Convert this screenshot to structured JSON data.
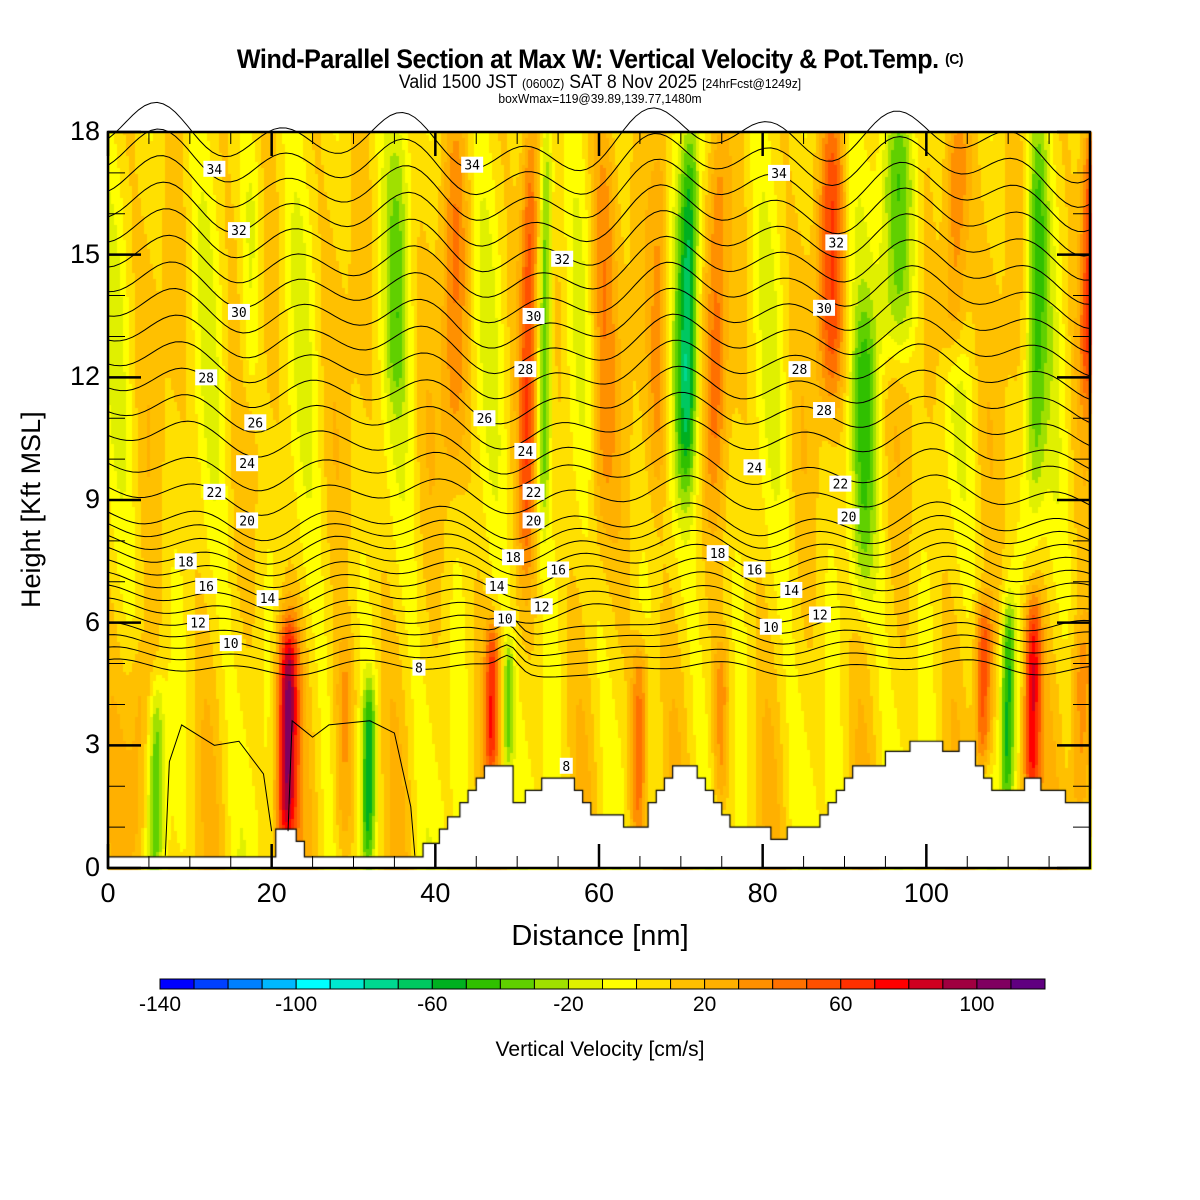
{
  "header": {
    "title": "Wind-Parallel Section at Max W: Vertical Velocity & Pot.Temp.",
    "title_copyright": "(C)",
    "subtitle_pre": "Valid 1500 JST",
    "subtitle_z": "(0600Z)",
    "subtitle_date": "SAT 8 Nov 2025",
    "subtitle_fcst": "[24hrFcst@1249z]",
    "subtitle2": "boxWmax=119@39.89,139.77,1480m"
  },
  "chart_data": {
    "type": "heatmap",
    "title": "Wind-Parallel Section at Max W: Vertical Velocity & Pot.Temp.",
    "xlabel": "Distance [nm]",
    "ylabel": "Height [Kft MSL]",
    "xlim": [
      0,
      120
    ],
    "ylim": [
      0,
      18
    ],
    "x_ticks": [
      0,
      20,
      40,
      60,
      80,
      100
    ],
    "y_ticks": [
      0,
      3,
      6,
      9,
      12,
      15,
      18
    ],
    "x_minor_step": 5,
    "y_minor_step": 1,
    "colorbar": {
      "label": "Vertical Velocity [cm/s]",
      "levels": [
        -140,
        -130,
        -120,
        -110,
        -100,
        -90,
        -80,
        -70,
        -60,
        -50,
        -40,
        -30,
        -20,
        -10,
        0,
        10,
        20,
        30,
        40,
        50,
        60,
        70,
        80,
        90,
        100,
        110,
        120
      ],
      "tick_labels": [
        "-140",
        "-100",
        "-60",
        "-20",
        "20",
        "60",
        "100"
      ],
      "tick_values": [
        -140,
        -100,
        -60,
        -20,
        20,
        60,
        100
      ],
      "colors": [
        "#0000ff",
        "#0040ff",
        "#0080ff",
        "#00b8ff",
        "#00ffff",
        "#00e8d0",
        "#00d890",
        "#00c860",
        "#00b020",
        "#30c000",
        "#60d000",
        "#a0e000",
        "#e0f000",
        "#ffff00",
        "#ffe000",
        "#ffc000",
        "#ffb000",
        "#ff9000",
        "#ff7000",
        "#ff5000",
        "#ff3000",
        "#ff0000",
        "#d00020",
        "#a00040",
        "#800060",
        "#600080"
      ],
      "placement": "bottom"
    },
    "filled_field": {
      "name": "Vertical Velocity",
      "units": "cm/s",
      "background_value": 5,
      "features": [
        {
          "x": 22,
          "z_min": 0.9,
          "z_max": 5.5,
          "peak": 95,
          "width_nm": 1.2
        },
        {
          "x": 4,
          "z_min": 0.5,
          "z_max": 5,
          "peak": 25,
          "width_nm": 1.5
        },
        {
          "x": 6,
          "z_min": 0.5,
          "z_max": 4,
          "peak": -40,
          "width_nm": 0.9
        },
        {
          "x": 32,
          "z_min": 0.5,
          "z_max": 4,
          "peak": -55,
          "width_nm": 0.8
        },
        {
          "x": 29,
          "z_min": 0.5,
          "z_max": 5,
          "peak": 30,
          "width_nm": 1.2
        },
        {
          "x": 47,
          "z_min": 3,
          "z_max": 5.5,
          "peak": 55,
          "width_nm": 0.8
        },
        {
          "x": 49,
          "z_min": 3,
          "z_max": 5,
          "peak": -35,
          "width_nm": 0.6
        },
        {
          "x": 65,
          "z_min": 1,
          "z_max": 5,
          "peak": 45,
          "width_nm": 1.0
        },
        {
          "x": 75,
          "z_min": 2,
          "z_max": 5,
          "peak": 30,
          "width_nm": 1.0
        },
        {
          "x": 107,
          "z_min": 3,
          "z_max": 6,
          "peak": 55,
          "width_nm": 1.0
        },
        {
          "x": 110,
          "z_min": 2,
          "z_max": 6,
          "peak": -55,
          "width_nm": 0.8
        },
        {
          "x": 113,
          "z_min": 2,
          "z_max": 6,
          "peak": 75,
          "width_nm": 1.0
        },
        {
          "x": 119,
          "z_min": 1,
          "z_max": 5.5,
          "peak": 35,
          "width_nm": 1.2
        },
        {
          "x": 51,
          "z_min": 8,
          "z_max": 18,
          "peak": 45,
          "width_nm": 1.0
        },
        {
          "x": 53,
          "z_min": 9,
          "z_max": 18,
          "peak": -50,
          "width_nm": 0.8
        },
        {
          "x": 70.5,
          "z_min": 10,
          "z_max": 18,
          "peak": -65,
          "width_nm": 1.2
        },
        {
          "x": 67,
          "z_min": 10,
          "z_max": 18,
          "peak": 30,
          "width_nm": 1.2
        },
        {
          "x": 74,
          "z_min": 10,
          "z_max": 18,
          "peak": 30,
          "width_nm": 1.2
        },
        {
          "x": 88,
          "z_min": 12,
          "z_max": 18,
          "peak": 45,
          "width_nm": 1.5
        },
        {
          "x": 96,
          "z_min": 13,
          "z_max": 18,
          "peak": -45,
          "width_nm": 2.2
        },
        {
          "x": 92,
          "z_min": 7,
          "z_max": 13,
          "peak": -35,
          "width_nm": 1.5
        },
        {
          "x": 103,
          "z_min": 13,
          "z_max": 18,
          "peak": 45,
          "width_nm": 1.5
        },
        {
          "x": 113,
          "z_min": 9,
          "z_max": 18,
          "peak": -40,
          "width_nm": 1.2
        },
        {
          "x": 119.5,
          "z_min": 12,
          "z_max": 18,
          "peak": 55,
          "width_nm": 1.0
        },
        {
          "x": 35,
          "z_min": 12,
          "z_max": 18,
          "peak": -25,
          "width_nm": 1.5
        },
        {
          "x": 42,
          "z_min": 10,
          "z_max": 18,
          "peak": 25,
          "width_nm": 1.5
        },
        {
          "x": 17,
          "z_min": 12,
          "z_max": 17,
          "peak": -20,
          "width_nm": 1.2
        },
        {
          "x": 60,
          "z_min": 8,
          "z_max": 18,
          "peak": 28,
          "width_nm": 1.5
        }
      ]
    },
    "contours": {
      "name": "Potential Temperature",
      "levels": [
        8,
        9,
        10,
        11,
        12,
        13,
        14,
        15,
        16,
        17,
        18,
        19,
        20,
        21,
        22,
        23,
        24,
        25,
        26,
        27,
        28,
        29,
        30,
        31,
        32,
        33,
        34,
        35
      ],
      "labels": [
        {
          "text": "34",
          "x": 13,
          "z": 17.1
        },
        {
          "text": "34",
          "x": 44.5,
          "z": 17.2
        },
        {
          "text": "34",
          "x": 82,
          "z": 17.0
        },
        {
          "text": "32",
          "x": 16,
          "z": 15.6
        },
        {
          "text": "32",
          "x": 55.5,
          "z": 14.9
        },
        {
          "text": "32",
          "x": 89,
          "z": 15.3
        },
        {
          "text": "30",
          "x": 16,
          "z": 13.6
        },
        {
          "text": "30",
          "x": 52,
          "z": 13.5
        },
        {
          "text": "30",
          "x": 87.5,
          "z": 13.7
        },
        {
          "text": "28",
          "x": 12,
          "z": 12.0
        },
        {
          "text": "28",
          "x": 51,
          "z": 12.2
        },
        {
          "text": "28",
          "x": 84.5,
          "z": 12.2
        },
        {
          "text": "28",
          "x": 87.5,
          "z": 11.2
        },
        {
          "text": "26",
          "x": 18,
          "z": 10.9
        },
        {
          "text": "26",
          "x": 46,
          "z": 11.0
        },
        {
          "text": "24",
          "x": 17,
          "z": 9.9
        },
        {
          "text": "24",
          "x": 51,
          "z": 10.2
        },
        {
          "text": "24",
          "x": 79,
          "z": 9.8
        },
        {
          "text": "22",
          "x": 13,
          "z": 9.2
        },
        {
          "text": "22",
          "x": 52,
          "z": 9.2
        },
        {
          "text": "22",
          "x": 89.5,
          "z": 9.4
        },
        {
          "text": "20",
          "x": 17,
          "z": 8.5
        },
        {
          "text": "20",
          "x": 52,
          "z": 8.5
        },
        {
          "text": "20",
          "x": 90.5,
          "z": 8.6
        },
        {
          "text": "18",
          "x": 9.5,
          "z": 7.5
        },
        {
          "text": "18",
          "x": 49.5,
          "z": 7.6
        },
        {
          "text": "18",
          "x": 74.5,
          "z": 7.7
        },
        {
          "text": "16",
          "x": 12,
          "z": 6.9
        },
        {
          "text": "16",
          "x": 55,
          "z": 7.3
        },
        {
          "text": "16",
          "x": 79,
          "z": 7.3
        },
        {
          "text": "14",
          "x": 19.5,
          "z": 6.6
        },
        {
          "text": "14",
          "x": 47.5,
          "z": 6.9
        },
        {
          "text": "14",
          "x": 83.5,
          "z": 6.8
        },
        {
          "text": "12",
          "x": 11,
          "z": 6.0
        },
        {
          "text": "12",
          "x": 53,
          "z": 6.4
        },
        {
          "text": "12",
          "x": 87,
          "z": 6.2
        },
        {
          "text": "10",
          "x": 15,
          "z": 5.5
        },
        {
          "text": "10",
          "x": 48.5,
          "z": 6.1
        },
        {
          "text": "10",
          "x": 81,
          "z": 5.9
        },
        {
          "text": "8",
          "x": 38,
          "z": 4.9
        },
        {
          "text": "8",
          "x": 56,
          "z": 2.5
        }
      ]
    },
    "terrain_kft": {
      "x": [
        0,
        20,
        20.5,
        21,
        23,
        24,
        25,
        38,
        38.5,
        40,
        40.5,
        41,
        41.5,
        42,
        43,
        44,
        45,
        46,
        46.5,
        49,
        49.5,
        50,
        51,
        52,
        53,
        56,
        57,
        58,
        59,
        60,
        63,
        64,
        66,
        67,
        68,
        69,
        70,
        72,
        73,
        74,
        75,
        76,
        80,
        81,
        82,
        83,
        84,
        86,
        87,
        88,
        89,
        90,
        91,
        92,
        95,
        96,
        97,
        98,
        101,
        102,
        103,
        104,
        105,
        106,
        107,
        108,
        109,
        110,
        111,
        112,
        113,
        114,
        116,
        117,
        118,
        120
      ],
      "z": [
        0.27,
        0.27,
        0.95,
        0.95,
        0.65,
        0.27,
        0.27,
        0.27,
        0.6,
        0.6,
        0.95,
        0.95,
        1.25,
        1.25,
        1.6,
        1.9,
        2.2,
        2.5,
        2.5,
        2.5,
        1.6,
        1.6,
        1.9,
        1.9,
        2.2,
        2.2,
        1.9,
        1.6,
        1.3,
        1.3,
        1.0,
        1.0,
        1.6,
        1.9,
        2.2,
        2.5,
        2.5,
        2.2,
        1.9,
        1.6,
        1.3,
        1.0,
        1.0,
        0.7,
        0.7,
        1.0,
        1.0,
        1.0,
        1.3,
        1.6,
        1.9,
        2.2,
        2.5,
        2.5,
        2.85,
        2.85,
        2.85,
        3.1,
        3.1,
        2.85,
        2.85,
        3.1,
        3.1,
        2.5,
        2.2,
        1.9,
        1.9,
        1.9,
        1.9,
        2.2,
        2.2,
        1.9,
        1.9,
        1.6,
        1.6,
        1.6
      ]
    }
  }
}
